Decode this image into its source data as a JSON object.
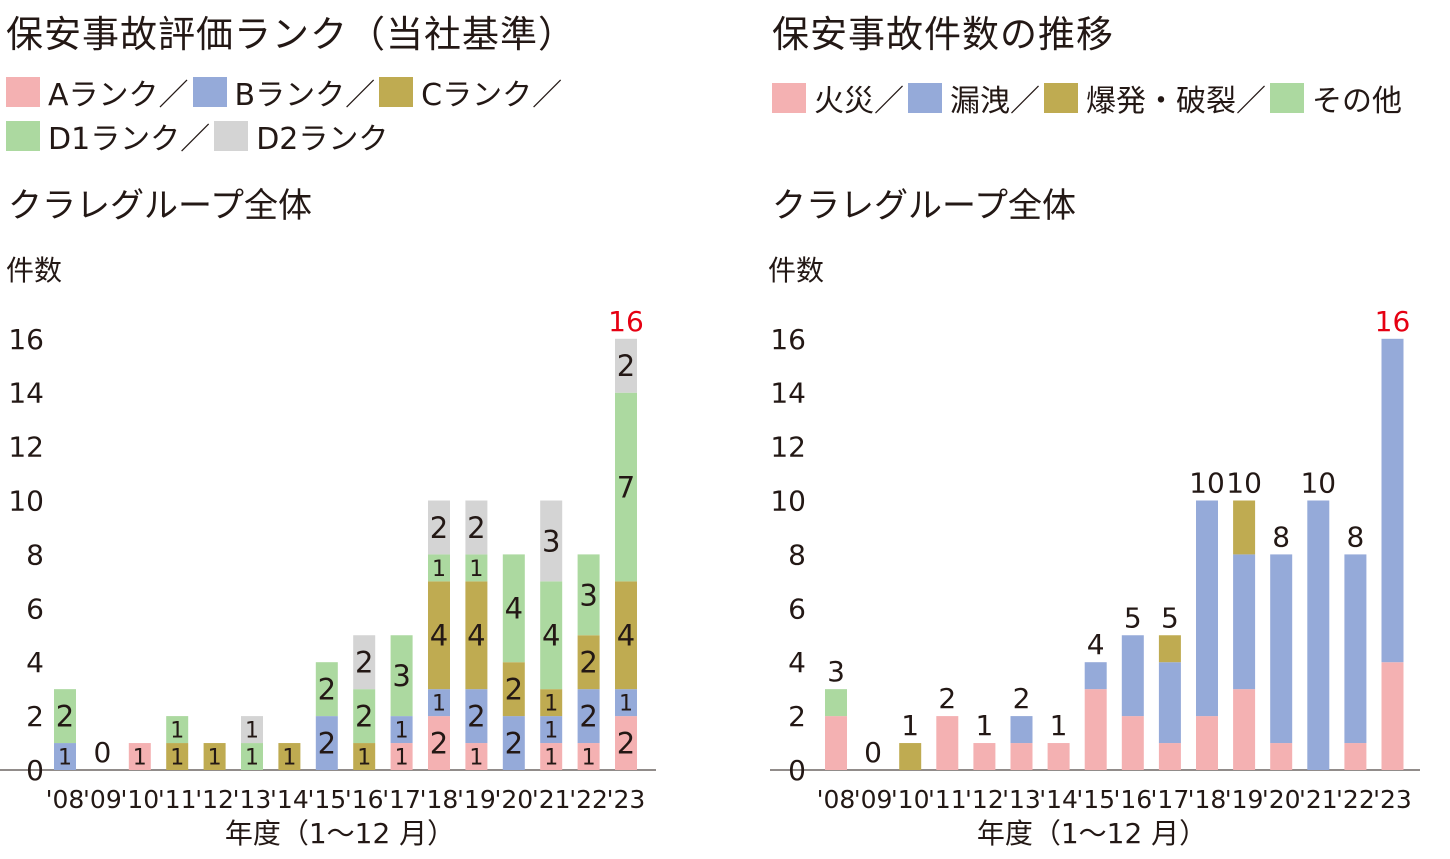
{
  "panels": {
    "left": {
      "title": "保安事故評価ランク（当社基準）",
      "legend": [
        {
          "label": "Aランク／",
          "color": "#f4b1b2"
        },
        {
          "label": "Bランク／",
          "color": "#95aad9"
        },
        {
          "label": "Cランク／",
          "color": "#bfab51"
        },
        {
          "label": "D1ランク／",
          "color": "#acd9a0"
        },
        {
          "label": "D2ランク",
          "color": "#d4d4d4"
        }
      ],
      "subtitle": "クラレグループ全体"
    },
    "right": {
      "title": "保安事故件数の推移",
      "legend": [
        {
          "label": "火災／",
          "color": "#f4b1b2"
        },
        {
          "label": "漏洩／",
          "color": "#95aad9"
        },
        {
          "label": "爆発・破裂／",
          "color": "#bfab51"
        },
        {
          "label": "その他",
          "color": "#acd9a0"
        }
      ],
      "subtitle": "クラレグループ全体"
    }
  },
  "total_highlight_color": "#e60012",
  "chart_data": [
    {
      "type": "bar",
      "stacked": true,
      "title": "保安事故評価ランク（当社基準）",
      "subtitle": "クラレグループ全体",
      "ylabel": "件数",
      "xlabel": "年度（1～12 月）",
      "ylim": [
        0,
        16
      ],
      "yticks": [
        0,
        2,
        4,
        6,
        8,
        10,
        12,
        14,
        16
      ],
      "categories": [
        "'08",
        "'09",
        "'10",
        "'11",
        "'12",
        "'13",
        "'14",
        "'15",
        "'16",
        "'17",
        "'18",
        "'19",
        "'20",
        "'21",
        "'22",
        "'23"
      ],
      "series": [
        {
          "name": "Aランク",
          "color": "#f4b1b2",
          "values": [
            0,
            0,
            1,
            0,
            0,
            0,
            0,
            0,
            0,
            1,
            2,
            1,
            0,
            1,
            1,
            2
          ]
        },
        {
          "name": "Bランク",
          "color": "#95aad9",
          "values": [
            1,
            0,
            0,
            0,
            0,
            0,
            0,
            2,
            0,
            1,
            1,
            2,
            2,
            1,
            2,
            1
          ]
        },
        {
          "name": "Cランク",
          "color": "#bfab51",
          "values": [
            0,
            0,
            0,
            1,
            1,
            0,
            1,
            0,
            1,
            0,
            4,
            4,
            2,
            1,
            2,
            4
          ]
        },
        {
          "name": "D1ランク",
          "color": "#acd9a0",
          "values": [
            2,
            0,
            0,
            1,
            0,
            1,
            0,
            2,
            2,
            3,
            1,
            1,
            4,
            4,
            3,
            7
          ]
        },
        {
          "name": "D2ランク",
          "color": "#d4d4d4",
          "values": [
            0,
            0,
            0,
            0,
            0,
            1,
            0,
            0,
            2,
            0,
            2,
            2,
            0,
            3,
            0,
            2
          ]
        }
      ],
      "totals_shown": [
        {
          "category": "'09",
          "value": 0
        },
        {
          "category": "'23",
          "value": 16,
          "color": "#e60012"
        }
      ]
    },
    {
      "type": "bar",
      "stacked": true,
      "title": "保安事故件数の推移",
      "subtitle": "クラレグループ全体",
      "ylabel": "件数",
      "xlabel": "年度（1～12 月）",
      "ylim": [
        0,
        16
      ],
      "yticks": [
        0,
        2,
        4,
        6,
        8,
        10,
        12,
        14,
        16
      ],
      "categories": [
        "'08",
        "'09",
        "'10",
        "'11",
        "'12",
        "'13",
        "'14",
        "'15",
        "'16",
        "'17",
        "'18",
        "'19",
        "'20",
        "'21",
        "'22",
        "'23"
      ],
      "series": [
        {
          "name": "火災",
          "color": "#f4b1b2",
          "values": [
            2,
            0,
            0,
            2,
            1,
            1,
            1,
            3,
            2,
            1,
            2,
            3,
            1,
            0,
            1,
            4
          ]
        },
        {
          "name": "漏洩",
          "color": "#95aad9",
          "values": [
            0,
            0,
            0,
            0,
            0,
            1,
            0,
            1,
            3,
            3,
            8,
            5,
            7,
            10,
            7,
            12
          ]
        },
        {
          "name": "爆発・破裂",
          "color": "#bfab51",
          "values": [
            0,
            0,
            1,
            0,
            0,
            0,
            0,
            0,
            0,
            1,
            0,
            2,
            0,
            0,
            0,
            0
          ]
        },
        {
          "name": "その他",
          "color": "#acd9a0",
          "values": [
            1,
            0,
            0,
            0,
            0,
            0,
            0,
            0,
            0,
            0,
            0,
            0,
            0,
            0,
            0,
            0
          ]
        }
      ],
      "totals": [
        3,
        0,
        1,
        2,
        1,
        2,
        1,
        4,
        5,
        5,
        10,
        10,
        8,
        10,
        8,
        16
      ],
      "highlight_last_total_color": "#e60012"
    }
  ]
}
